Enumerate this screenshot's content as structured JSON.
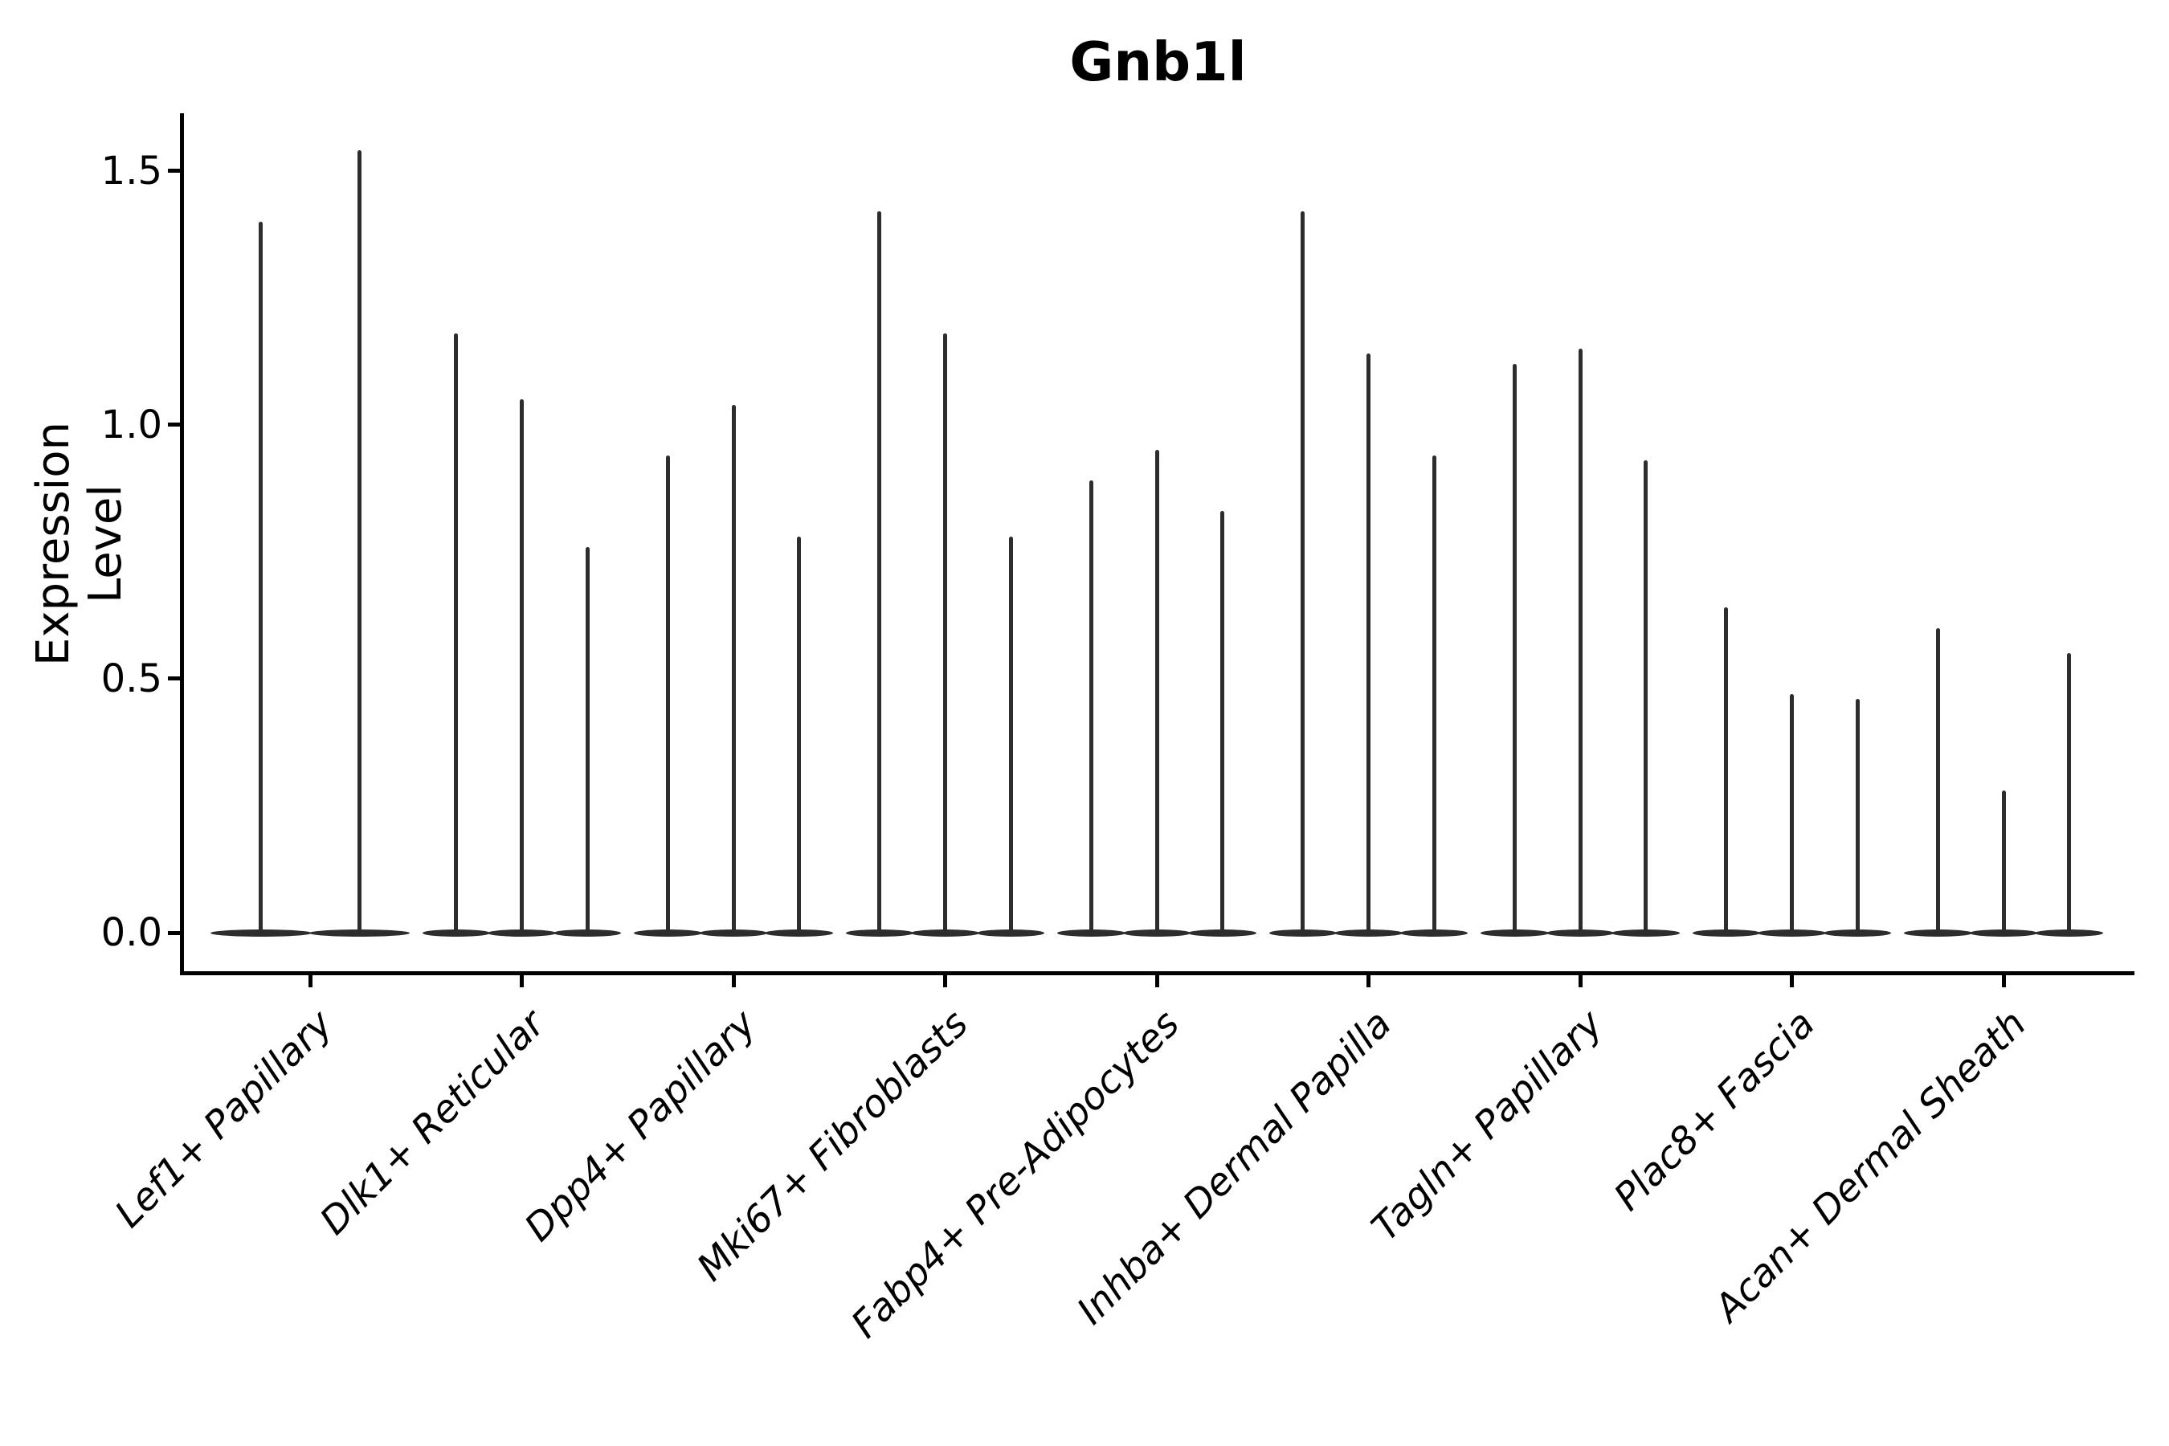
{
  "title": "Gnb1l",
  "axes": {
    "ylabel": "Expression Level"
  },
  "chart_data": {
    "type": "violin",
    "title": "Gnb1l",
    "xlabel": "",
    "ylabel": "Expression Level",
    "grid": false,
    "legend": false,
    "x_tick_rotation_deg": 45,
    "x_tick_style": "italic",
    "ytick_labels": [
      "0.0",
      "0.5",
      "1.0",
      "1.5"
    ],
    "ytick_values": [
      0.0,
      0.5,
      1.0,
      1.5
    ],
    "ylim": [
      -0.08,
      1.61
    ],
    "categories": [
      "Lef1+ Papillary",
      "Dlk1+ Reticular",
      "Dpp4+ Papillary",
      "Mki67+ Fibroblasts",
      "Fabp4+ Pre-Adipocytes",
      "Inhba+ Dermal Papilla",
      "Tagln+ Papillary",
      "Plac8+ Fascia",
      "Acan+ Dermal Sheath"
    ],
    "series": [
      {
        "category": "Lef1+ Papillary",
        "violin_maxima": [
          1.4,
          1.54
        ]
      },
      {
        "category": "Dlk1+ Reticular",
        "violin_maxima": [
          1.18,
          1.05,
          0.76
        ]
      },
      {
        "category": "Dpp4+ Papillary",
        "violin_maxima": [
          0.94,
          1.04,
          0.78
        ]
      },
      {
        "category": "Mki67+ Fibroblasts",
        "violin_maxima": [
          1.42,
          1.18,
          0.78
        ]
      },
      {
        "category": "Fabp4+ Pre-Adipocytes",
        "violin_maxima": [
          0.89,
          0.95,
          0.83
        ]
      },
      {
        "category": "Inhba+ Dermal Papilla",
        "violin_maxima": [
          1.42,
          1.14,
          0.94
        ]
      },
      {
        "category": "Tagln+ Papillary",
        "violin_maxima": [
          1.12,
          1.15,
          0.93
        ]
      },
      {
        "category": "Plac8+ Fascia",
        "violin_maxima": [
          0.64,
          0.47,
          0.46
        ]
      },
      {
        "category": "Acan+ Dermal Sheath",
        "violin_maxima": [
          0.6,
          0.28,
          0.55
        ]
      }
    ],
    "style": {
      "violin_color": "#2d2d2d",
      "axis_color": "#000000",
      "text_color": "#000000",
      "background": "#ffffff"
    }
  }
}
